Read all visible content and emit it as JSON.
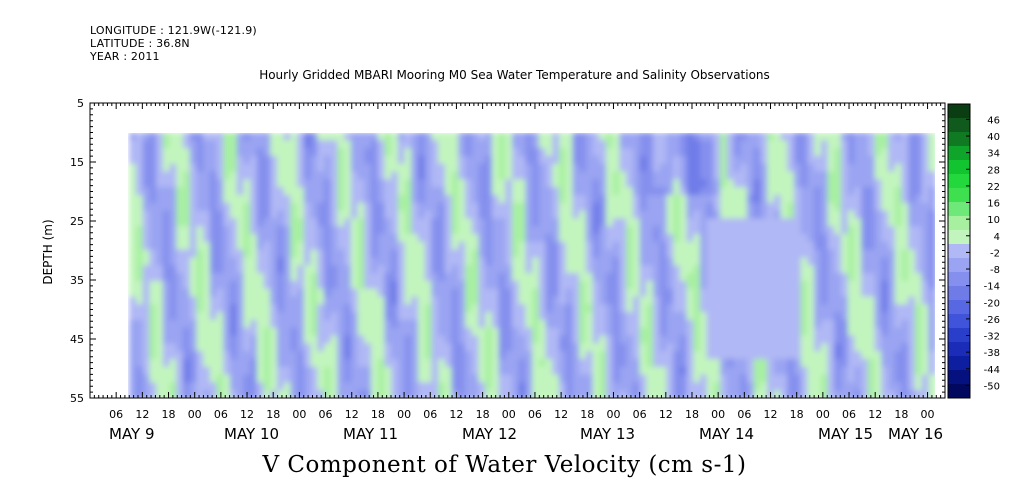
{
  "header": {
    "longitude": "LONGITUDE : 121.9W(-121.9)",
    "latitude": "LATITUDE : 36.8N",
    "year": "YEAR : 2011"
  },
  "chart_data": {
    "type": "heatmap",
    "title": "Hourly Gridded MBARI Mooring M0 Sea Water Temperature and Salinity Observations",
    "ylabel": "DEPTH (m)",
    "colorbar_label": "V Component of Water Velocity (cm s-1)",
    "y_range": [
      5,
      55
    ],
    "y_inverted": true,
    "y_ticks": [
      5,
      15,
      25,
      35,
      45,
      55
    ],
    "data_depth_range": [
      10,
      55
    ],
    "x_range_hours": [
      "2011-05-08 00:00",
      "2011-05-16 04:00"
    ],
    "hour_tick_labels": [
      "06",
      "12",
      "18",
      "00",
      "06",
      "12",
      "18",
      "00",
      "06",
      "12",
      "18",
      "00",
      "06",
      "12",
      "18",
      "00",
      "06",
      "12",
      "18",
      "00",
      "06",
      "12",
      "18",
      "00",
      "06",
      "12",
      "18",
      "00",
      "06",
      "12",
      "18",
      "00"
    ],
    "day_labels": [
      "MAY  9",
      "MAY 10",
      "MAY 11",
      "MAY 12",
      "MAY 13",
      "MAY 14",
      "MAY 15",
      "MAY 16"
    ],
    "data_start": "2011-05-08 09:00",
    "colorbar_levels": [
      "46",
      "40",
      "34",
      "28",
      "22",
      "16",
      "10",
      "4",
      "-2",
      "-8",
      "-14",
      "-20",
      "-26",
      "-32",
      "-38",
      "-44",
      "-50"
    ],
    "colorbar_colors": [
      "#0b3d12",
      "#0f5a1c",
      "#0f7a22",
      "#0ea52a",
      "#12c430",
      "#22d83c",
      "#3fe050",
      "#6fe87a",
      "#a7f0a0",
      "#c2f5bd",
      "#b0b8f5",
      "#9aa4f2",
      "#8590ee",
      "#6f7ce8",
      "#5868e2",
      "#3f54da",
      "#2a3ecc",
      "#1a2cb8",
      "#0e1ea0",
      "#061180",
      "#02085e"
    ]
  }
}
